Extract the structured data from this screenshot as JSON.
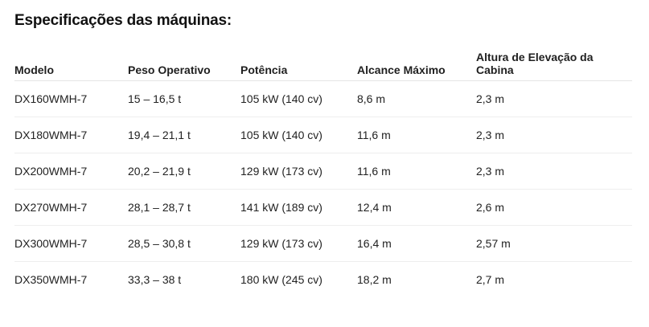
{
  "title": "Especificações das máquinas:",
  "table": {
    "headers": [
      "Modelo",
      "Peso Operativo",
      "Potência",
      "Alcance Máximo",
      "Altura de Elevação da Cabina"
    ],
    "rows": [
      [
        "DX160WMH-7",
        "15 – 16,5 t",
        "105 kW (140 cv)",
        "8,6 m",
        "2,3 m"
      ],
      [
        "DX180WMH-7",
        "19,4 – 21,1 t",
        "105 kW (140 cv)",
        "11,6 m",
        "2,3 m"
      ],
      [
        "DX200WMH-7",
        "20,2 – 21,9 t",
        "129 kW (173 cv)",
        "11,6 m",
        "2,3 m"
      ],
      [
        "DX270WMH-7",
        "28,1 – 28,7 t",
        "141 kW (189 cv)",
        "12,4 m",
        "2,6 m"
      ],
      [
        "DX300WMH-7",
        "28,5 – 30,8 t",
        "129 kW (173 cv)",
        "16,4 m",
        "2,57 m"
      ],
      [
        "DX350WMH-7",
        "33,3 – 38 t",
        "180 kW (245 cv)",
        "18,2 m",
        "2,7 m"
      ]
    ]
  }
}
